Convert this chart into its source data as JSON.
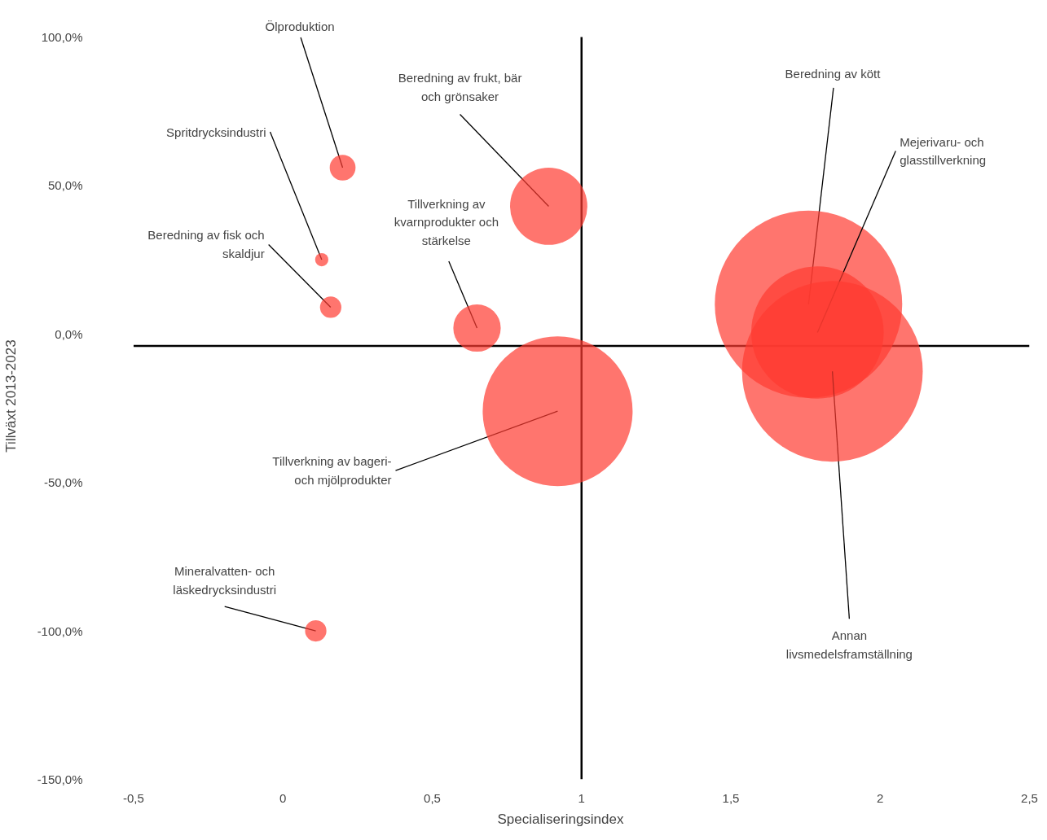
{
  "chart_data": {
    "type": "bubble",
    "xlabel": "Specialiseringsindex",
    "ylabel": "Tillväxt 2013-2023",
    "xlim": [
      -0.5,
      2.5
    ],
    "ylim": [
      -150,
      100
    ],
    "xticks": [
      {
        "value": -0.5,
        "label": "-0,5"
      },
      0,
      {
        "value": 0.5,
        "label": "0,5"
      },
      1,
      {
        "value": 1.5,
        "label": "1,5"
      },
      2,
      {
        "value": 2.5,
        "label": "2,5"
      }
    ],
    "yticks": [
      {
        "value": -150,
        "label": "-150,0%"
      },
      {
        "value": -100,
        "label": "-100,0%"
      },
      {
        "value": -50,
        "label": "-50,0%"
      },
      {
        "value": 0,
        "label": "0,0%"
      },
      {
        "value": 50,
        "label": "50,0%"
      },
      {
        "value": 100,
        "label": "100,0%"
      }
    ],
    "grid": false,
    "legend": false,
    "ref_lines": [
      {
        "axis": "x",
        "value": 1,
        "color": "#000000"
      },
      {
        "axis": "y",
        "value": -4,
        "color": "#000000"
      }
    ],
    "series": [
      {
        "name": "Ölproduktion",
        "color": "#ff3b30",
        "x": [
          0.2
        ],
        "values": [
          56
        ],
        "sizes": [
          0.019
        ]
      },
      {
        "name": "Spritdrycksindustri",
        "color": "#ff3b30",
        "x": [
          0.13
        ],
        "values": [
          25
        ],
        "sizes": [
          0.005
        ]
      },
      {
        "name": "Beredning av fisk och skaldjur",
        "color": "#ff3b30",
        "x": [
          0.16
        ],
        "values": [
          9
        ],
        "sizes": [
          0.013
        ]
      },
      {
        "name": "Beredning av frukt, bär och grönsaker",
        "color": "#ff3b30",
        "x": [
          0.89
        ],
        "values": [
          43
        ],
        "sizes": [
          0.17
        ]
      },
      {
        "name": "Tillverkning av kvarnprodukter och stärkelse",
        "color": "#ff3b30",
        "x": [
          0.65
        ],
        "values": [
          2
        ],
        "sizes": [
          0.064
        ]
      },
      {
        "name": "Tillverkning av bageri- och mjölprodukter",
        "color": "#ff3b30",
        "x": [
          0.92
        ],
        "values": [
          -26
        ],
        "sizes": [
          0.64
        ]
      },
      {
        "name": "Mineralvatten- och läskedrycksindustri",
        "color": "#ff3b30",
        "x": [
          0.11
        ],
        "values": [
          -100
        ],
        "sizes": [
          0.013
        ]
      },
      {
        "name": "Beredning av kött",
        "color": "#ff3b30",
        "x": [
          1.76
        ],
        "values": [
          10
        ],
        "sizes": [
          1
        ]
      },
      {
        "name": "Mejerivaru- och glasstillverkning",
        "color": "#ff3b30",
        "x": [
          1.79
        ],
        "values": [
          0.5
        ],
        "sizes": [
          0.5
        ]
      },
      {
        "name": "Annan livsmedelsframställning",
        "color": "#ff3b30",
        "x": [
          1.84
        ],
        "values": [
          -12.6
        ],
        "sizes": [
          0.93
        ]
      }
    ]
  }
}
